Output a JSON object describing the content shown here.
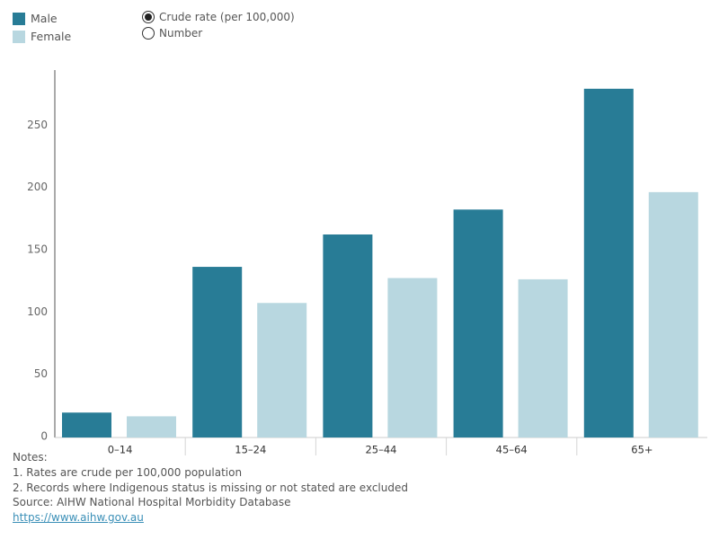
{
  "legend": {
    "items": [
      {
        "label": "Male",
        "color": "#287c96"
      },
      {
        "label": "Female",
        "color": "#b8d7e0"
      }
    ]
  },
  "measure_toggle": {
    "options": [
      {
        "label": "Crude rate (per 100,000)",
        "selected": true
      },
      {
        "label": "Number",
        "selected": false
      }
    ]
  },
  "chart_data": {
    "type": "bar",
    "categories": [
      "0–14",
      "15–24",
      "25–44",
      "45–64",
      "65+"
    ],
    "series": [
      {
        "name": "Male",
        "color": "#287c96",
        "values": [
          20,
          137,
          163,
          183,
          280
        ]
      },
      {
        "name": "Female",
        "color": "#b8d7e0",
        "values": [
          17,
          108,
          128,
          127,
          197
        ]
      }
    ],
    "yticks": [
      0,
      50,
      100,
      150,
      200,
      250
    ],
    "ylim": [
      0,
      295
    ],
    "grid": false,
    "legend_position": "top-left"
  },
  "notes": {
    "heading": "Notes:",
    "lines": [
      "1. Rates are crude per 100,000 population",
      "2. Records where Indigenous status is missing or not stated are excluded"
    ],
    "source": "Source: AIHW National Hospital Morbidity Database",
    "link": "https://www.aihw.gov.au"
  }
}
